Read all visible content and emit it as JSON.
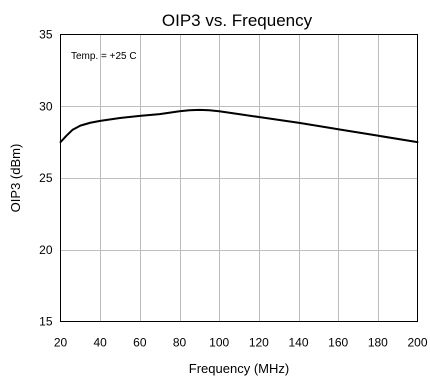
{
  "chart_data": {
    "type": "line",
    "title": "OIP3 vs. Frequency",
    "xlabel": "Frequency (MHz)",
    "ylabel": "OIP3 (dBm)",
    "annotation": "Temp. = +25 C",
    "xlim": [
      20,
      200
    ],
    "ylim": [
      15,
      35
    ],
    "xticks": [
      20,
      40,
      60,
      80,
      100,
      120,
      140,
      160,
      180,
      200
    ],
    "yticks": [
      15,
      20,
      25,
      30,
      35
    ],
    "grid": true,
    "legend": "none",
    "series": [
      {
        "color": "#000000",
        "x": [
          20,
          23,
          26,
          30,
          35,
          40,
          50,
          60,
          70,
          80,
          85,
          90,
          95,
          100,
          110,
          120,
          140,
          160,
          180,
          200
        ],
        "y": [
          27.5,
          27.95,
          28.35,
          28.65,
          28.85,
          28.98,
          29.18,
          29.33,
          29.45,
          29.65,
          29.72,
          29.75,
          29.72,
          29.65,
          29.45,
          29.25,
          28.85,
          28.4,
          27.95,
          27.5
        ]
      }
    ]
  }
}
